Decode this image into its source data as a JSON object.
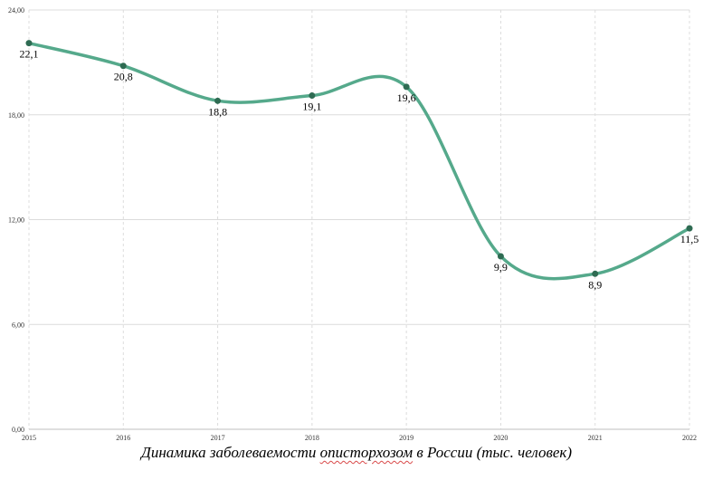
{
  "caption": {
    "before": "Динамика заболеваемости ",
    "marked": "описторхозом",
    "after": " в России (тыс. человек)"
  },
  "chart_data": {
    "type": "line",
    "title": "Динамика заболеваемости описторхозом в России (тыс. человек)",
    "xlabel": "",
    "ylabel": "",
    "categories": [
      "2015",
      "2016",
      "2017",
      "2018",
      "2019",
      "2020",
      "2021",
      "2022"
    ],
    "series": [
      {
        "values": [
          22.1,
          20.8,
          18.8,
          19.1,
          19.6,
          9.9,
          8.9,
          11.5
        ],
        "labels": [
          "22,1",
          "20,8",
          "18,8",
          "19,1",
          "19,6",
          "9,9",
          "8,9",
          "11,5"
        ]
      }
    ],
    "ylim": [
      0,
      24
    ],
    "yticks": [
      0,
      6,
      12,
      18,
      24
    ],
    "ytick_labels": [
      "0,00",
      "6,00",
      "12,00",
      "18,00",
      "24,00"
    ],
    "grid": true,
    "line_color": "#55a98b",
    "marker_color": "#2e6b52",
    "grid_color": "#dcdcdc"
  }
}
